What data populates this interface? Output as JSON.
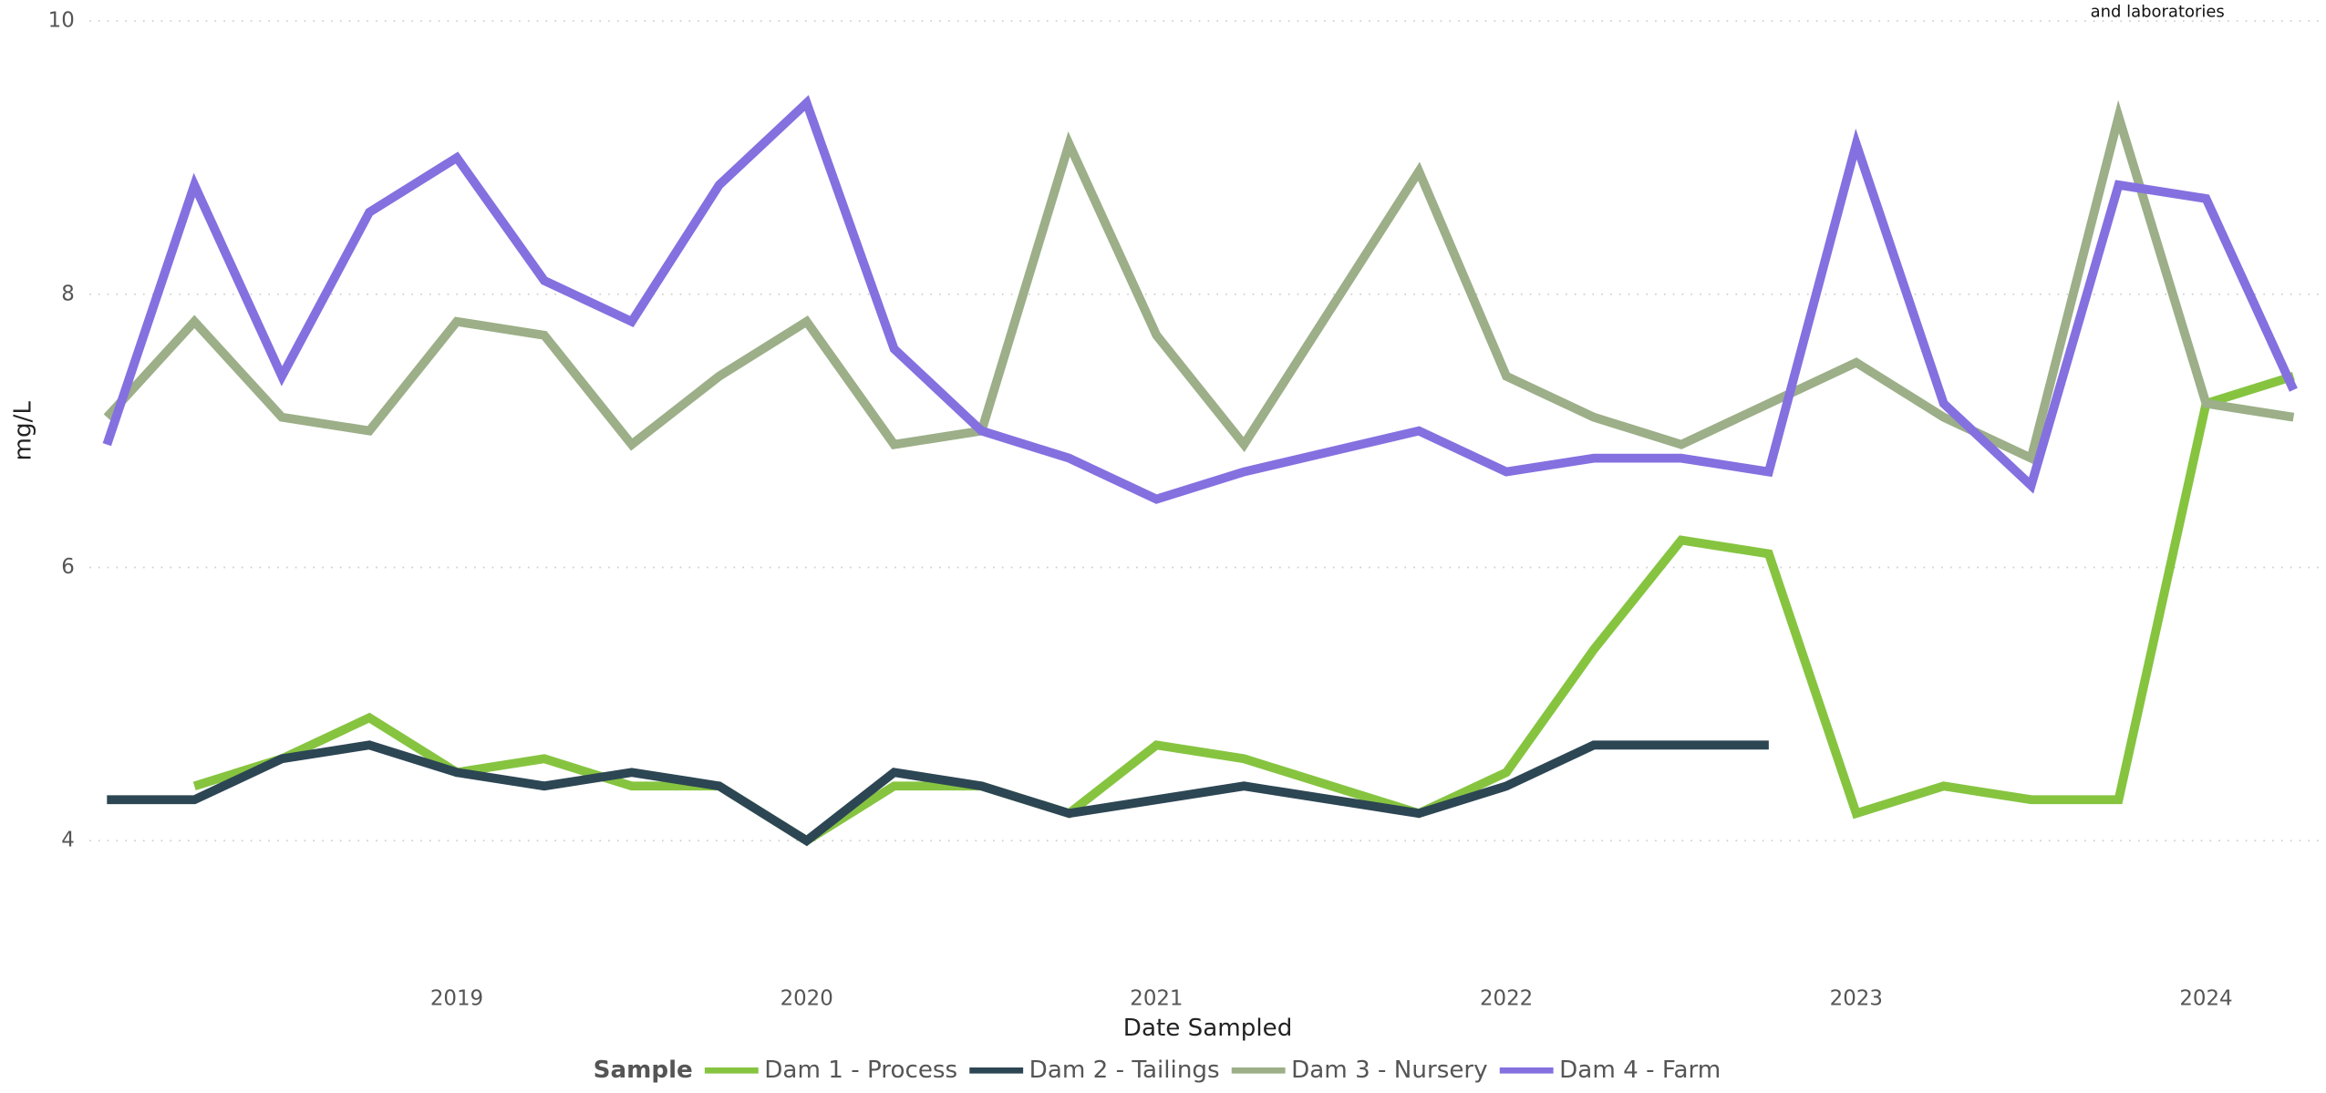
{
  "chart_data": {
    "type": "line",
    "x_label": "Date Sampled",
    "y_label": "mg/L",
    "legend_title": "Sample",
    "annotation": "and laboratories",
    "x": [
      2018,
      2018.25,
      2018.5,
      2018.75,
      2019,
      2019.25,
      2019.5,
      2019.75,
      2020,
      2020.25,
      2020.5,
      2020.75,
      2021,
      2021.25,
      2021.75,
      2022,
      2022.25,
      2022.5,
      2022.75,
      2023,
      2023.25,
      2023.5,
      2023.75,
      2024,
      2024.25
    ],
    "xlim": [
      2017.95,
      2024.33
    ],
    "xticks": [
      2019,
      2020,
      2021,
      2022,
      2023,
      2024
    ],
    "ylim": [
      3.3,
      10
    ],
    "yticks": [
      4,
      6,
      8,
      10
    ],
    "grid": true,
    "legend_position": "bottom",
    "series": [
      {
        "name": "Dam 1 - Process",
        "color": "#86c440",
        "values": [
          null,
          4.4,
          4.6,
          4.9,
          4.5,
          4.6,
          4.4,
          4.4,
          4.0,
          4.4,
          4.4,
          4.2,
          4.7,
          4.6,
          4.2,
          4.5,
          5.4,
          6.2,
          6.1,
          4.2,
          4.4,
          4.3,
          4.3,
          7.2,
          7.4
        ]
      },
      {
        "name": "Dam 2 - Tailings",
        "color": "#2d4654",
        "values": [
          4.3,
          4.3,
          4.6,
          4.7,
          4.5,
          4.4,
          4.5,
          4.4,
          4.0,
          4.5,
          4.4,
          4.2,
          4.3,
          4.4,
          4.2,
          4.4,
          4.7,
          4.7,
          4.7,
          null,
          null,
          null,
          null,
          null,
          null
        ]
      },
      {
        "name": "Dam 3 - Nursery",
        "color": "#9caf88",
        "values": [
          7.1,
          7.8,
          7.1,
          7.0,
          7.8,
          7.7,
          6.9,
          7.4,
          7.8,
          6.9,
          7.0,
          9.1,
          7.7,
          6.9,
          8.9,
          7.4,
          7.1,
          6.9,
          7.2,
          7.5,
          7.1,
          6.8,
          9.3,
          7.2,
          7.1
        ]
      },
      {
        "name": "Dam 4 - Farm",
        "color": "#8570e0",
        "values": [
          6.9,
          8.8,
          7.4,
          8.6,
          9.0,
          8.1,
          7.8,
          8.8,
          9.4,
          7.6,
          7.0,
          6.8,
          6.5,
          6.7,
          7.0,
          6.7,
          6.8,
          6.8,
          6.7,
          9.1,
          7.2,
          6.6,
          8.8,
          8.7,
          7.3
        ]
      }
    ]
  }
}
